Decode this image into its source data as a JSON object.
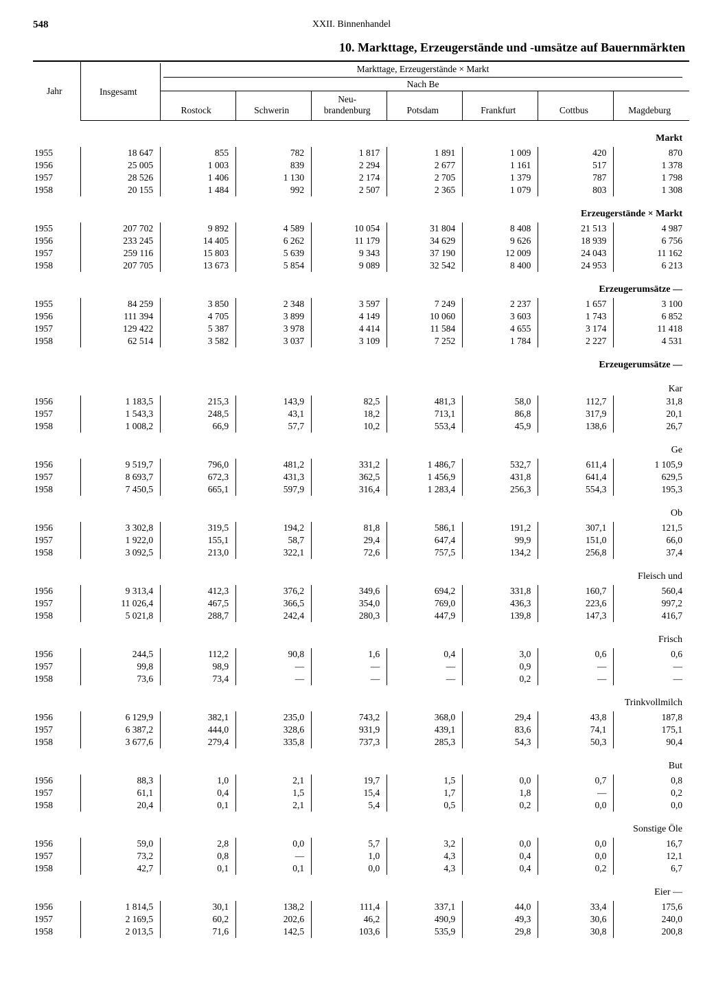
{
  "page_number": "548",
  "running_head": "XXII. Binnenhandel",
  "title": "10. Markttage, Erzeugerstände und -umsätze auf Bauernmärkten",
  "super_header_line1": "Markttage, Erzeugerstände × Markt",
  "super_header_line2": "Nach Be",
  "col_year": "Jahr",
  "col_total": "Insgesamt",
  "districts": [
    "Rostock",
    "Schwerin",
    "Neu-\nbrandenburg",
    "Potsdam",
    "Frankfurt",
    "Cottbus",
    "Magdeburg"
  ],
  "sections": [
    {
      "label": "Markt",
      "bold": true,
      "rows": [
        {
          "y": "1955",
          "t": "18 647",
          "d": [
            "855",
            "782",
            "1 817",
            "1 891",
            "1 009",
            "420",
            "870"
          ]
        },
        {
          "y": "1956",
          "t": "25 005",
          "d": [
            "1 003",
            "839",
            "2 294",
            "2 677",
            "1 161",
            "517",
            "1 378"
          ]
        },
        {
          "y": "1957",
          "t": "28 526",
          "d": [
            "1 406",
            "1 130",
            "2 174",
            "2 705",
            "1 379",
            "787",
            "1 798"
          ]
        },
        {
          "y": "1958",
          "t": "20 155",
          "d": [
            "1 484",
            "992",
            "2 507",
            "2 365",
            "1 079",
            "803",
            "1 308"
          ]
        }
      ]
    },
    {
      "label": "Erzeugerstände × Markt",
      "bold": true,
      "rows": [
        {
          "y": "1955",
          "t": "207 702",
          "d": [
            "9 892",
            "4 589",
            "10 054",
            "31 804",
            "8 408",
            "21 513",
            "4 987"
          ]
        },
        {
          "y": "1956",
          "t": "233 245",
          "d": [
            "14 405",
            "6 262",
            "11 179",
            "34 629",
            "9 626",
            "18 939",
            "6 756"
          ]
        },
        {
          "y": "1957",
          "t": "259 116",
          "d": [
            "15 803",
            "5 639",
            "9 343",
            "37 190",
            "12 009",
            "24 043",
            "11 162"
          ]
        },
        {
          "y": "1958",
          "t": "207 705",
          "d": [
            "13 673",
            "5 854",
            "9 089",
            "32 542",
            "8 400",
            "24 953",
            "6 213"
          ]
        }
      ]
    },
    {
      "label": "Erzeugerumsätze —",
      "bold": true,
      "rows": [
        {
          "y": "1955",
          "t": "84 259",
          "d": [
            "3 850",
            "2 348",
            "3 597",
            "7 249",
            "2 237",
            "1 657",
            "3 100"
          ]
        },
        {
          "y": "1956",
          "t": "111 394",
          "d": [
            "4 705",
            "3 899",
            "4 149",
            "10 060",
            "3 603",
            "1 743",
            "6 852"
          ]
        },
        {
          "y": "1957",
          "t": "129 422",
          "d": [
            "5 387",
            "3 978",
            "4 414",
            "11 584",
            "4 655",
            "3 174",
            "11 418"
          ]
        },
        {
          "y": "1958",
          "t": "62 514",
          "d": [
            "3 582",
            "3 037",
            "3 109",
            "7 252",
            "1 784",
            "2 227",
            "4 531"
          ]
        }
      ]
    },
    {
      "label": "Erzeugerumsätze —",
      "bold": true,
      "sub": "Kar",
      "rows": [
        {
          "y": "1956",
          "t": "1 183,5",
          "d": [
            "215,3",
            "143,9",
            "82,5",
            "481,3",
            "58,0",
            "112,7",
            "31,8"
          ]
        },
        {
          "y": "1957",
          "t": "1 543,3",
          "d": [
            "248,5",
            "43,1",
            "18,2",
            "713,1",
            "86,8",
            "317,9",
            "20,1"
          ]
        },
        {
          "y": "1958",
          "t": "1 008,2",
          "d": [
            "66,9",
            "57,7",
            "10,2",
            "553,4",
            "45,9",
            "138,6",
            "26,7"
          ]
        }
      ]
    },
    {
      "label": "Ge",
      "bold": false,
      "rows": [
        {
          "y": "1956",
          "t": "9 519,7",
          "d": [
            "796,0",
            "481,2",
            "331,2",
            "1 486,7",
            "532,7",
            "611,4",
            "1 105,9"
          ]
        },
        {
          "y": "1957",
          "t": "8 693,7",
          "d": [
            "672,3",
            "431,3",
            "362,5",
            "1 456,9",
            "431,8",
            "641,4",
            "629,5"
          ]
        },
        {
          "y": "1958",
          "t": "7 450,5",
          "d": [
            "665,1",
            "597,9",
            "316,4",
            "1 283,4",
            "256,3",
            "554,3",
            "195,3"
          ]
        }
      ]
    },
    {
      "label": "Ob",
      "bold": false,
      "rows": [
        {
          "y": "1956",
          "t": "3 302,8",
          "d": [
            "319,5",
            "194,2",
            "81,8",
            "586,1",
            "191,2",
            "307,1",
            "121,5"
          ]
        },
        {
          "y": "1957",
          "t": "1 922,0",
          "d": [
            "155,1",
            "58,7",
            "29,4",
            "647,4",
            "99,9",
            "151,0",
            "66,0"
          ]
        },
        {
          "y": "1958",
          "t": "3 092,5",
          "d": [
            "213,0",
            "322,1",
            "72,6",
            "757,5",
            "134,2",
            "256,8",
            "37,4"
          ]
        }
      ]
    },
    {
      "label": "Fleisch und",
      "bold": false,
      "rows": [
        {
          "y": "1956",
          "t": "9 313,4",
          "d": [
            "412,3",
            "376,2",
            "349,6",
            "694,2",
            "331,8",
            "160,7",
            "560,4"
          ]
        },
        {
          "y": "1957",
          "t": "11 026,4",
          "d": [
            "467,5",
            "366,5",
            "354,0",
            "769,0",
            "436,3",
            "223,6",
            "997,2"
          ]
        },
        {
          "y": "1958",
          "t": "5 021,8",
          "d": [
            "288,7",
            "242,4",
            "280,3",
            "447,9",
            "139,8",
            "147,3",
            "416,7"
          ]
        }
      ]
    },
    {
      "label": "Frisch",
      "bold": false,
      "rows": [
        {
          "y": "1956",
          "t": "244,5",
          "d": [
            "112,2",
            "90,8",
            "1,6",
            "0,4",
            "3,0",
            "0,6",
            "0,6"
          ]
        },
        {
          "y": "1957",
          "t": "99,8",
          "d": [
            "98,9",
            "—",
            "—",
            "—",
            "0,9",
            "—",
            "—"
          ]
        },
        {
          "y": "1958",
          "t": "73,6",
          "d": [
            "73,4",
            "—",
            "—",
            "—",
            "0,2",
            "—",
            "—"
          ]
        }
      ]
    },
    {
      "label": "Trinkvollmilch",
      "bold": false,
      "rows": [
        {
          "y": "1956",
          "t": "6 129,9",
          "d": [
            "382,1",
            "235,0",
            "743,2",
            "368,0",
            "29,4",
            "43,8",
            "187,8"
          ]
        },
        {
          "y": "1957",
          "t": "6 387,2",
          "d": [
            "444,0",
            "328,6",
            "931,9",
            "439,1",
            "83,6",
            "74,1",
            "175,1"
          ]
        },
        {
          "y": "1958",
          "t": "3 677,6",
          "d": [
            "279,4",
            "335,8",
            "737,3",
            "285,3",
            "54,3",
            "50,3",
            "90,4"
          ]
        }
      ]
    },
    {
      "label": "But",
      "bold": false,
      "rows": [
        {
          "y": "1956",
          "t": "88,3",
          "d": [
            "1,0",
            "2,1",
            "19,7",
            "1,5",
            "0,0",
            "0,7",
            "0,8"
          ]
        },
        {
          "y": "1957",
          "t": "61,1",
          "d": [
            "0,4",
            "1,5",
            "15,4",
            "1,7",
            "1,8",
            "—",
            "0,2"
          ]
        },
        {
          "y": "1958",
          "t": "20,4",
          "d": [
            "0,1",
            "2,1",
            "5,4",
            "0,5",
            "0,2",
            "0,0",
            "0,0"
          ]
        }
      ]
    },
    {
      "label": "Sonstige Öle",
      "bold": false,
      "rows": [
        {
          "y": "1956",
          "t": "59,0",
          "d": [
            "2,8",
            "0,0",
            "5,7",
            "3,2",
            "0,0",
            "0,0",
            "16,7"
          ]
        },
        {
          "y": "1957",
          "t": "73,2",
          "d": [
            "0,8",
            "—",
            "1,0",
            "4,3",
            "0,4",
            "0,0",
            "12,1"
          ]
        },
        {
          "y": "1958",
          "t": "42,7",
          "d": [
            "0,1",
            "0,1",
            "0,0",
            "4,3",
            "0,4",
            "0,2",
            "6,7"
          ]
        }
      ]
    },
    {
      "label": "Eier —",
      "bold": false,
      "rows": [
        {
          "y": "1956",
          "t": "1 814,5",
          "d": [
            "30,1",
            "138,2",
            "111,4",
            "337,1",
            "44,0",
            "33,4",
            "175,6"
          ]
        },
        {
          "y": "1957",
          "t": "2 169,5",
          "d": [
            "60,2",
            "202,6",
            "46,2",
            "490,9",
            "49,3",
            "30,6",
            "240,0"
          ]
        },
        {
          "y": "1958",
          "t": "2 013,5",
          "d": [
            "71,6",
            "142,5",
            "103,6",
            "535,9",
            "29,8",
            "30,8",
            "200,8"
          ]
        }
      ]
    }
  ]
}
